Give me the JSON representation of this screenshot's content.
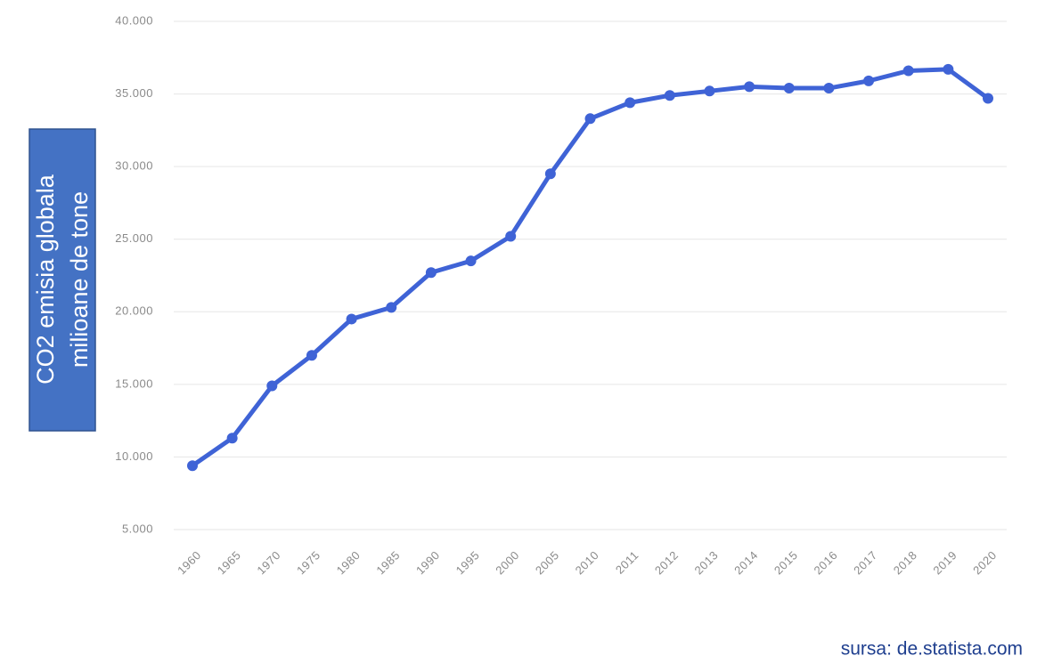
{
  "chart_data": {
    "type": "line",
    "ylabel": [
      "CO2 emisia globala",
      "milioane de tone"
    ],
    "source": "sursa: de.statista.com",
    "categories": [
      "1960",
      "1965",
      "1970",
      "1975",
      "1980",
      "1985",
      "1990",
      "1995",
      "2000",
      "2005",
      "2010",
      "2011",
      "2012",
      "2013",
      "2014",
      "2015",
      "2016",
      "2017",
      "2018",
      "2019",
      "2020"
    ],
    "series": [
      {
        "color": "#3f63d6",
        "values": [
          9400,
          11300,
          14900,
          17000,
          19500,
          20300,
          22700,
          23500,
          25200,
          29500,
          33300,
          34400,
          34900,
          35200,
          35500,
          35400,
          35400,
          35900,
          36600,
          36700,
          34700
        ]
      }
    ],
    "ylim": [
      5000,
      40000
    ],
    "yticks": [
      {
        "value": 5000,
        "label": "5.000"
      },
      {
        "value": 10000,
        "label": "10.000"
      },
      {
        "value": 15000,
        "label": "15.000"
      },
      {
        "value": 20000,
        "label": "20.000"
      },
      {
        "value": 25000,
        "label": "25.000"
      },
      {
        "value": 30000,
        "label": "30.000"
      },
      {
        "value": 35000,
        "label": "35.000"
      },
      {
        "value": 40000,
        "label": "40.000"
      }
    ],
    "grid": true
  }
}
